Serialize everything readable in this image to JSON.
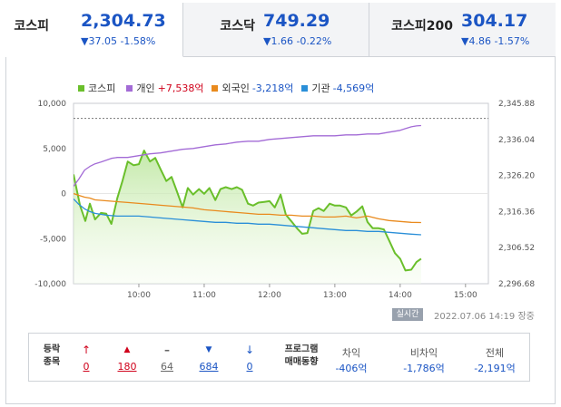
{
  "tabs": [
    {
      "name": "코스피",
      "value": "2,304.73",
      "change": "▼37.05 -1.58%",
      "active": true
    },
    {
      "name": "코스닥",
      "value": "749.29",
      "change": "▼1.66 -0.22%",
      "active": false
    },
    {
      "name": "코스피200",
      "value": "304.17",
      "change": "▼4.86 -1.57%",
      "active": false
    }
  ],
  "legend": [
    {
      "name": "코스피",
      "value": "",
      "color": "#6abf2b",
      "value_color": "#333"
    },
    {
      "name": "개인",
      "value": "+7,538억",
      "color": "#a36bd6",
      "value_color": "#d0021b"
    },
    {
      "name": "외국인",
      "value": "-3,218억",
      "color": "#e98a1d",
      "value_color": "#1b55c4"
    },
    {
      "name": "기관",
      "value": "-4,569억",
      "color": "#2a8fd8",
      "value_color": "#1b55c4"
    }
  ],
  "chart_data": {
    "type": "line",
    "x_ticks": [
      "10:00",
      "11:00",
      "12:00",
      "13:00",
      "14:00",
      "15:00"
    ],
    "y_left_ticks": [
      "10,000",
      "5,000",
      "0",
      "-5,000",
      "-10,000"
    ],
    "y_right_ticks": [
      "2,345.88",
      "2,336.04",
      "2,326.20",
      "2,316.36",
      "2,306.52",
      "2,296.68"
    ],
    "y_left_range": [
      -10000,
      10000
    ],
    "y_right_range": [
      2296.68,
      2345.88
    ],
    "prev_close_line": 2341.78,
    "series": [
      {
        "name": "코스피",
        "axis": "right",
        "color": "#6abf2b",
        "fill": true,
        "points": [
          [
            9.0,
            2326.5
          ],
          [
            9.1,
            2318
          ],
          [
            9.18,
            2313.8
          ],
          [
            9.25,
            2318.5
          ],
          [
            9.33,
            2314.2
          ],
          [
            9.42,
            2316
          ],
          [
            9.5,
            2315.8
          ],
          [
            9.58,
            2313
          ],
          [
            9.67,
            2320
          ],
          [
            9.75,
            2324.8
          ],
          [
            9.83,
            2330
          ],
          [
            9.92,
            2329
          ],
          [
            10.0,
            2329.3
          ],
          [
            10.08,
            2333
          ],
          [
            10.17,
            2330
          ],
          [
            10.25,
            2331
          ],
          [
            10.33,
            2328
          ],
          [
            10.42,
            2324.7
          ],
          [
            10.5,
            2325.8
          ],
          [
            10.58,
            2322
          ],
          [
            10.67,
            2317.5
          ],
          [
            10.75,
            2322.8
          ],
          [
            10.83,
            2321
          ],
          [
            10.92,
            2322.5
          ],
          [
            11.0,
            2321.2
          ],
          [
            11.08,
            2322.8
          ],
          [
            11.17,
            2319.5
          ],
          [
            11.25,
            2322.5
          ],
          [
            11.33,
            2323
          ],
          [
            11.42,
            2322.5
          ],
          [
            11.5,
            2323
          ],
          [
            11.58,
            2322.3
          ],
          [
            11.67,
            2318.5
          ],
          [
            11.75,
            2318
          ],
          [
            11.83,
            2318.8
          ],
          [
            11.92,
            2319
          ],
          [
            12.0,
            2319.2
          ],
          [
            12.08,
            2317.5
          ],
          [
            12.17,
            2321
          ],
          [
            12.25,
            2315.5
          ],
          [
            12.33,
            2313.8
          ],
          [
            12.42,
            2311.8
          ],
          [
            12.5,
            2310.3
          ],
          [
            12.58,
            2310.5
          ],
          [
            12.67,
            2316.5
          ],
          [
            12.75,
            2317.3
          ],
          [
            12.83,
            2316.5
          ],
          [
            12.92,
            2318.5
          ],
          [
            13.0,
            2318
          ],
          [
            13.08,
            2318
          ],
          [
            13.17,
            2317.5
          ],
          [
            13.25,
            2315.3
          ],
          [
            13.33,
            2316.3
          ],
          [
            13.42,
            2317.8
          ],
          [
            13.5,
            2313.5
          ],
          [
            13.58,
            2311.8
          ],
          [
            13.67,
            2311.8
          ],
          [
            13.75,
            2311.5
          ],
          [
            13.83,
            2308.5
          ],
          [
            13.92,
            2305
          ],
          [
            14.0,
            2303.5
          ],
          [
            14.08,
            2300.3
          ],
          [
            14.17,
            2300.5
          ],
          [
            14.25,
            2302.6
          ],
          [
            14.32,
            2303.5
          ]
        ]
      },
      {
        "name": "개인",
        "axis": "left",
        "color": "#a36bd6",
        "fill": false,
        "points": [
          [
            9.0,
            800
          ],
          [
            9.08,
            1600
          ],
          [
            9.17,
            2600
          ],
          [
            9.25,
            3000
          ],
          [
            9.33,
            3300
          ],
          [
            9.42,
            3500
          ],
          [
            9.5,
            3700
          ],
          [
            9.58,
            3900
          ],
          [
            9.67,
            4000
          ],
          [
            9.83,
            4000
          ],
          [
            10.0,
            4200
          ],
          [
            10.17,
            4400
          ],
          [
            10.33,
            4500
          ],
          [
            10.5,
            4700
          ],
          [
            10.67,
            4900
          ],
          [
            10.83,
            5000
          ],
          [
            11.0,
            5200
          ],
          [
            11.17,
            5400
          ],
          [
            11.33,
            5500
          ],
          [
            11.5,
            5700
          ],
          [
            11.67,
            5800
          ],
          [
            11.83,
            5800
          ],
          [
            12.0,
            6000
          ],
          [
            12.17,
            6100
          ],
          [
            12.33,
            6200
          ],
          [
            12.5,
            6300
          ],
          [
            12.67,
            6400
          ],
          [
            12.83,
            6400
          ],
          [
            13.0,
            6400
          ],
          [
            13.17,
            6500
          ],
          [
            13.33,
            6500
          ],
          [
            13.5,
            6600
          ],
          [
            13.67,
            6600
          ],
          [
            13.83,
            6800
          ],
          [
            14.0,
            7000
          ],
          [
            14.08,
            7200
          ],
          [
            14.17,
            7400
          ],
          [
            14.25,
            7500
          ],
          [
            14.32,
            7538
          ]
        ]
      },
      {
        "name": "외국인",
        "axis": "left",
        "color": "#e98a1d",
        "fill": false,
        "points": [
          [
            9.0,
            0
          ],
          [
            9.08,
            -200
          ],
          [
            9.17,
            -400
          ],
          [
            9.25,
            -500
          ],
          [
            9.33,
            -700
          ],
          [
            9.5,
            -800
          ],
          [
            9.67,
            -900
          ],
          [
            9.83,
            -1000
          ],
          [
            10.0,
            -1100
          ],
          [
            10.17,
            -1200
          ],
          [
            10.33,
            -1300
          ],
          [
            10.5,
            -1400
          ],
          [
            10.67,
            -1500
          ],
          [
            10.83,
            -1600
          ],
          [
            11.0,
            -1800
          ],
          [
            11.17,
            -1900
          ],
          [
            11.33,
            -2000
          ],
          [
            11.5,
            -2100
          ],
          [
            11.67,
            -2200
          ],
          [
            11.83,
            -2300
          ],
          [
            12.0,
            -2300
          ],
          [
            12.17,
            -2400
          ],
          [
            12.33,
            -2400
          ],
          [
            12.5,
            -2500
          ],
          [
            12.67,
            -2500
          ],
          [
            12.83,
            -2600
          ],
          [
            13.0,
            -2600
          ],
          [
            13.17,
            -2500
          ],
          [
            13.33,
            -2700
          ],
          [
            13.5,
            -2500
          ],
          [
            13.67,
            -2800
          ],
          [
            13.83,
            -3000
          ],
          [
            14.0,
            -3100
          ],
          [
            14.17,
            -3200
          ],
          [
            14.32,
            -3218
          ]
        ]
      },
      {
        "name": "기관",
        "axis": "left",
        "color": "#2a8fd8",
        "fill": false,
        "points": [
          [
            9.0,
            -600
          ],
          [
            9.08,
            -1200
          ],
          [
            9.17,
            -1700
          ],
          [
            9.25,
            -2000
          ],
          [
            9.33,
            -2200
          ],
          [
            9.5,
            -2400
          ],
          [
            9.67,
            -2500
          ],
          [
            9.83,
            -2500
          ],
          [
            10.0,
            -2500
          ],
          [
            10.17,
            -2600
          ],
          [
            10.33,
            -2700
          ],
          [
            10.5,
            -2800
          ],
          [
            10.67,
            -2900
          ],
          [
            10.83,
            -3000
          ],
          [
            11.0,
            -3100
          ],
          [
            11.17,
            -3200
          ],
          [
            11.33,
            -3200
          ],
          [
            11.5,
            -3300
          ],
          [
            11.67,
            -3300
          ],
          [
            11.83,
            -3400
          ],
          [
            12.0,
            -3400
          ],
          [
            12.17,
            -3500
          ],
          [
            12.33,
            -3600
          ],
          [
            12.5,
            -3700
          ],
          [
            12.67,
            -3800
          ],
          [
            12.83,
            -3900
          ],
          [
            13.0,
            -4000
          ],
          [
            13.17,
            -4100
          ],
          [
            13.33,
            -4100
          ],
          [
            13.5,
            -4200
          ],
          [
            13.67,
            -4200
          ],
          [
            13.83,
            -4300
          ],
          [
            14.0,
            -4400
          ],
          [
            14.17,
            -4500
          ],
          [
            14.32,
            -4569
          ]
        ]
      }
    ]
  },
  "realtime_label": "실시간",
  "timestamp": "2022.07.06 14:19",
  "market_status": "장중",
  "bottom": {
    "title_line1": "등락",
    "title_line2": "종목",
    "items": [
      {
        "icon": "↑",
        "value": "0",
        "color": "red"
      },
      {
        "icon": "▲",
        "value": "180",
        "color": "red"
      },
      {
        "icon": "–",
        "value": "64",
        "color": "gray"
      },
      {
        "icon": "▼",
        "value": "684",
        "color": "blue"
      },
      {
        "icon": "↓",
        "value": "0",
        "color": "blue"
      }
    ],
    "program_title_line1": "프로그램",
    "program_title_line2": "매매동향",
    "program": [
      {
        "label": "차익",
        "value": "-406억"
      },
      {
        "label": "비차익",
        "value": "-1,786억"
      },
      {
        "label": "전체",
        "value": "-2,191억"
      }
    ]
  }
}
